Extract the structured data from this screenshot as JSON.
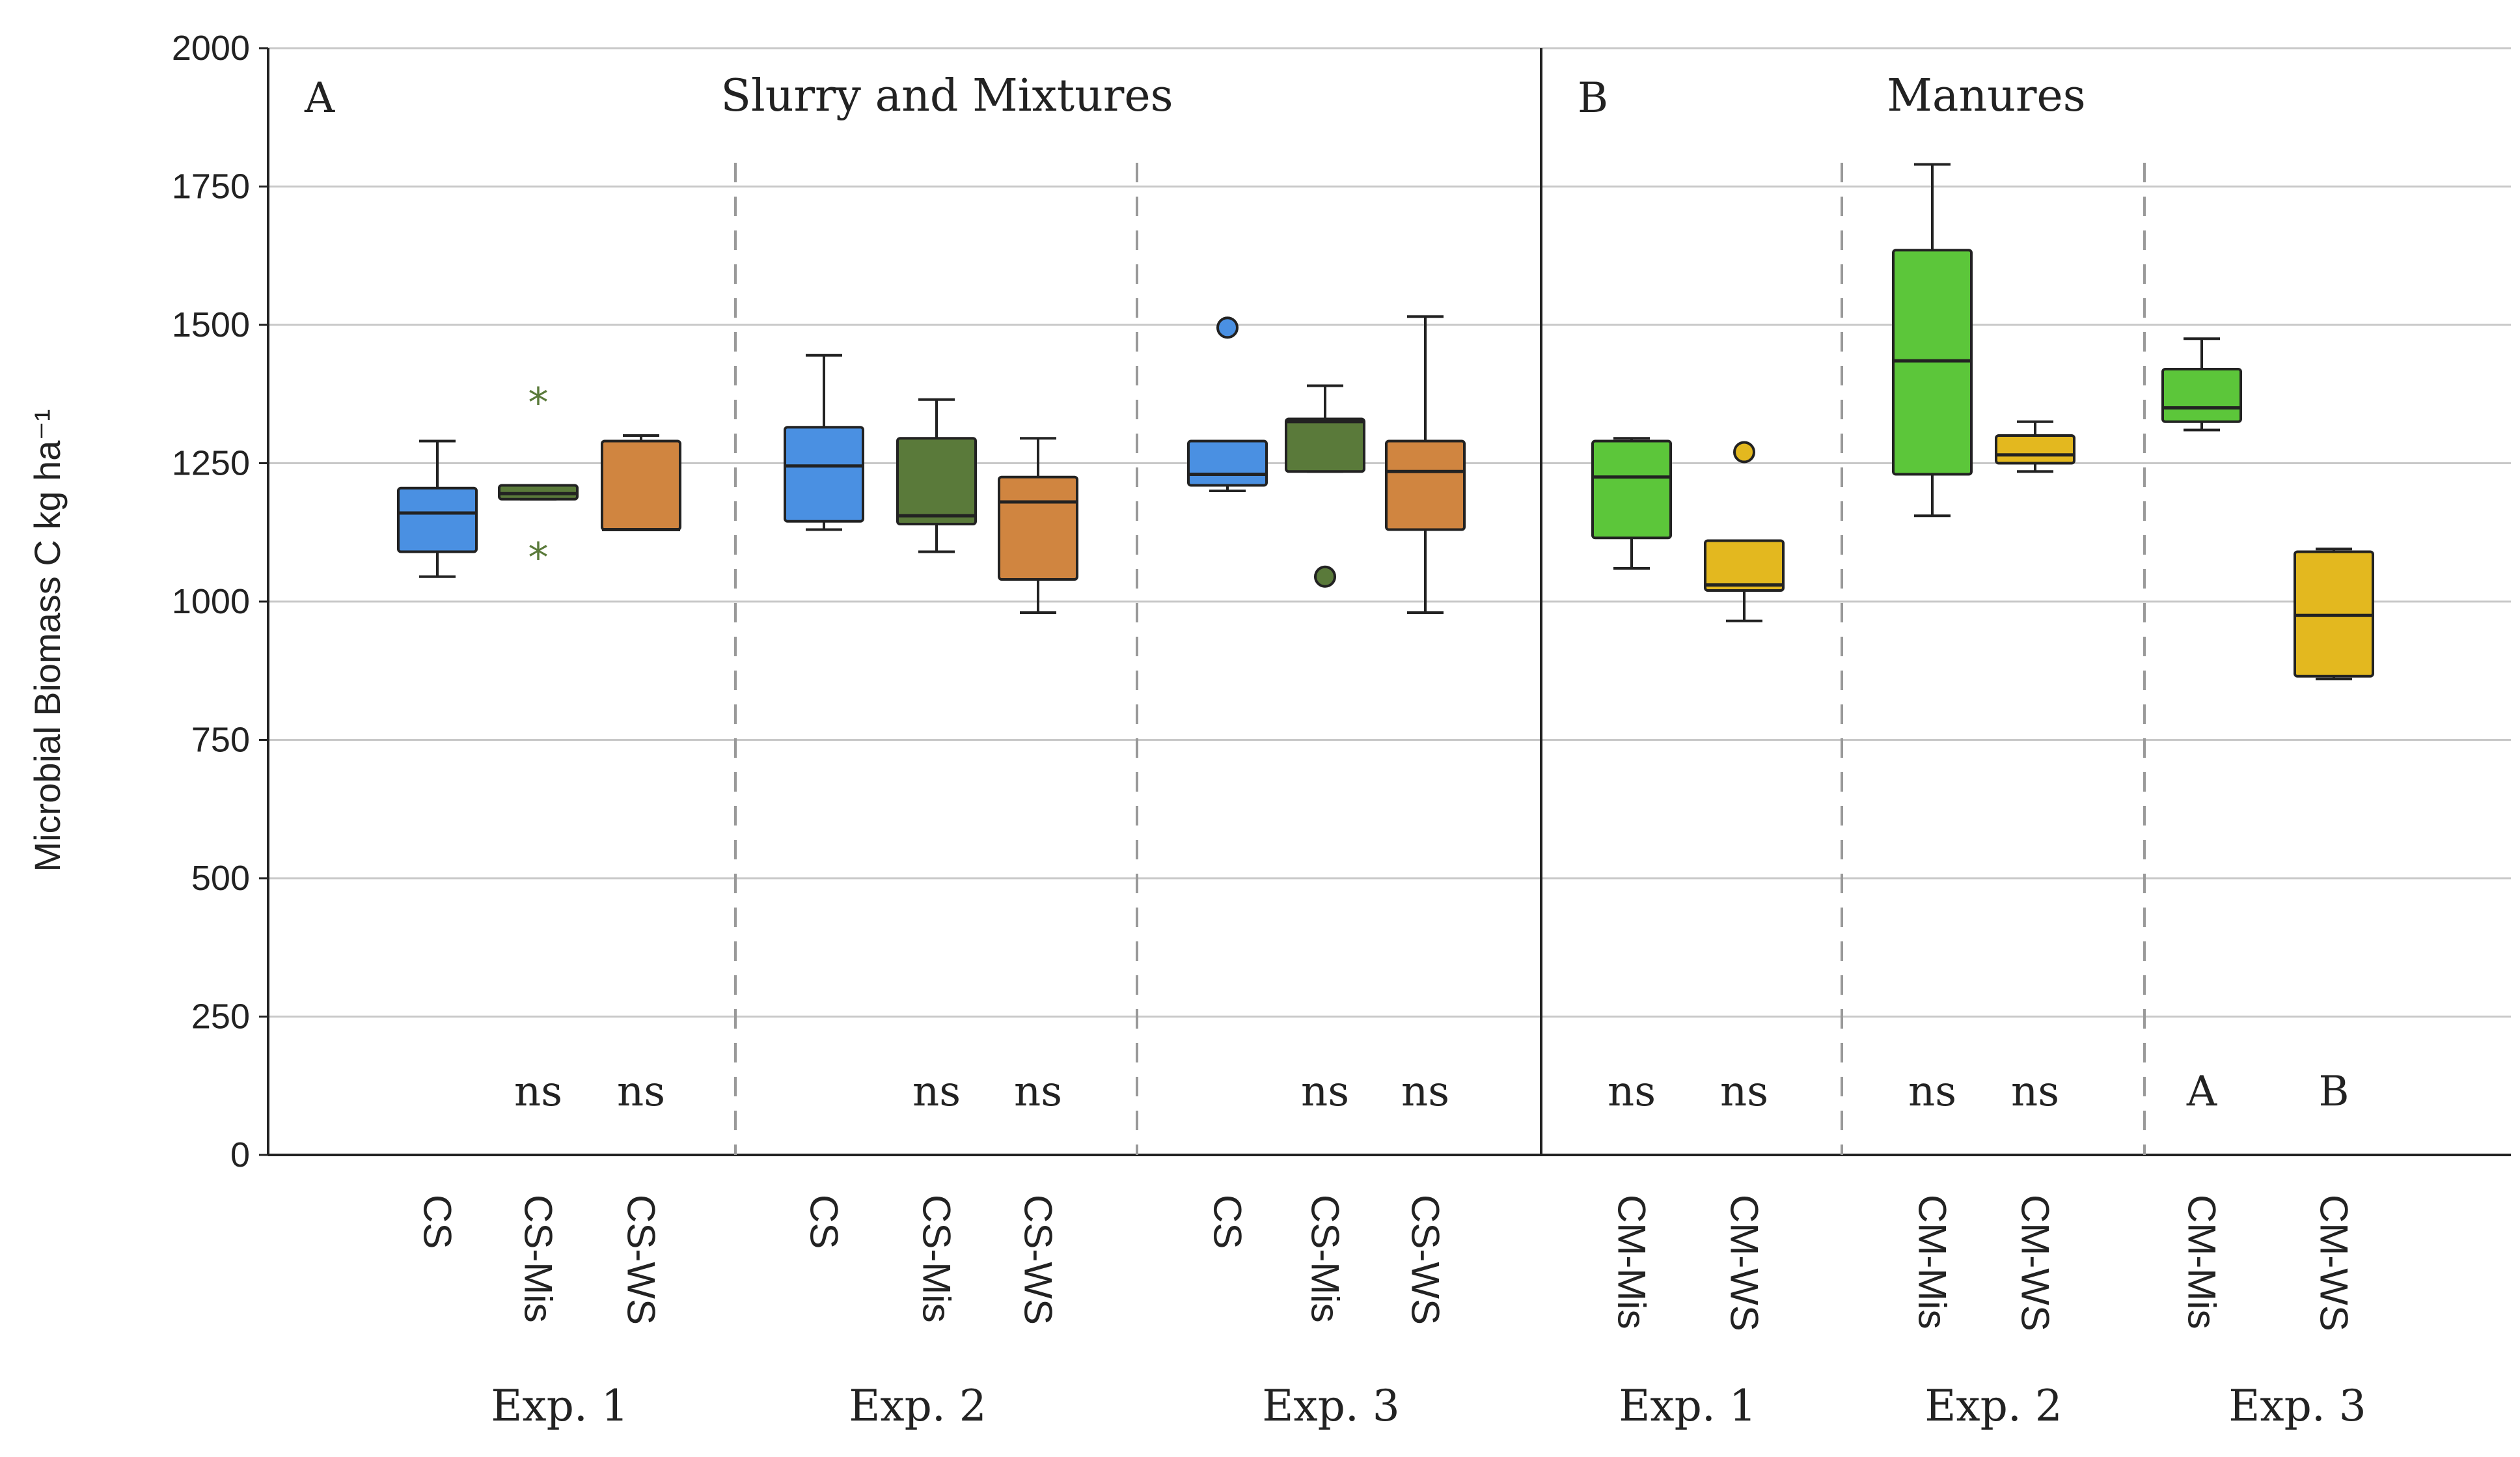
{
  "chart_data": {
    "type": "box",
    "ylabel": "Microbial Biomass C kg ha⁻¹",
    "ylim": [
      0,
      2000
    ],
    "yticks": [
      0,
      250,
      500,
      750,
      1000,
      1250,
      1500,
      1750,
      2000
    ],
    "grid": true,
    "colors": {
      "CS": "#4a90e2",
      "CS-Mis": "#5a7a3a",
      "CS-WS": "#d08540",
      "CM-Mis": "#5cc63a",
      "CM-WS": "#e3b81f"
    },
    "panels": [
      {
        "letter": "A",
        "title": "Slurry and Mixtures",
        "experiments": [
          {
            "label": "Exp. 1",
            "groups": [
              {
                "name": "CS",
                "whisker_low": 1045,
                "q1": 1090,
                "median": 1160,
                "q3": 1205,
                "whisker_high": 1290,
                "outliers": [],
                "annotation": ""
              },
              {
                "name": "CS-Mis",
                "whisker_low": 1185,
                "q1": 1185,
                "median": 1195,
                "q3": 1210,
                "whisker_high": 1210,
                "outliers": [],
                "extremes": [
                  1365,
                  1085
                ],
                "annotation": "ns"
              },
              {
                "name": "CS-WS",
                "whisker_low": 1130,
                "q1": 1130,
                "median": 1130,
                "q3": 1290,
                "whisker_high": 1300,
                "outliers": [],
                "annotation": "ns"
              }
            ]
          },
          {
            "label": "Exp. 2",
            "groups": [
              {
                "name": "CS",
                "whisker_low": 1130,
                "q1": 1145,
                "median": 1245,
                "q3": 1315,
                "whisker_high": 1445,
                "outliers": [],
                "annotation": ""
              },
              {
                "name": "CS-Mis",
                "whisker_low": 1090,
                "q1": 1140,
                "median": 1155,
                "q3": 1295,
                "whisker_high": 1365,
                "outliers": [],
                "annotation": "ns"
              },
              {
                "name": "CS-WS",
                "whisker_low": 980,
                "q1": 1040,
                "median": 1180,
                "q3": 1225,
                "whisker_high": 1295,
                "outliers": [],
                "annotation": "ns"
              }
            ]
          },
          {
            "label": "Exp. 3",
            "groups": [
              {
                "name": "CS",
                "whisker_low": 1200,
                "q1": 1210,
                "median": 1230,
                "q3": 1290,
                "whisker_high": 1290,
                "outliers": [
                  1495
                ],
                "annotation": ""
              },
              {
                "name": "CS-Mis",
                "whisker_low": 1235,
                "q1": 1235,
                "median": 1325,
                "q3": 1330,
                "whisker_high": 1390,
                "outliers": [
                  1045
                ],
                "annotation": "ns"
              },
              {
                "name": "CS-WS",
                "whisker_low": 980,
                "q1": 1130,
                "median": 1235,
                "q3": 1290,
                "whisker_high": 1515,
                "outliers": [],
                "annotation": "ns"
              }
            ]
          }
        ]
      },
      {
        "letter": "B",
        "title": "Manures",
        "experiments": [
          {
            "label": "Exp. 1",
            "groups": [
              {
                "name": "CM-Mis",
                "whisker_low": 1060,
                "q1": 1115,
                "median": 1225,
                "q3": 1290,
                "whisker_high": 1295,
                "outliers": [],
                "annotation": "ns"
              },
              {
                "name": "CM-WS",
                "whisker_low": 965,
                "q1": 1020,
                "median": 1030,
                "q3": 1110,
                "whisker_high": 1110,
                "outliers": [
                  1270
                ],
                "annotation": "ns"
              }
            ]
          },
          {
            "label": "Exp. 2",
            "groups": [
              {
                "name": "CM-Mis",
                "whisker_low": 1155,
                "q1": 1230,
                "median": 1435,
                "q3": 1635,
                "whisker_high": 1790,
                "outliers": [],
                "annotation": "ns"
              },
              {
                "name": "CM-WS",
                "whisker_low": 1235,
                "q1": 1250,
                "median": 1265,
                "q3": 1300,
                "whisker_high": 1325,
                "outliers": [],
                "annotation": "ns"
              }
            ]
          },
          {
            "label": "Exp. 3",
            "groups": [
              {
                "name": "CM-Mis",
                "whisker_low": 1310,
                "q1": 1325,
                "median": 1350,
                "q3": 1420,
                "whisker_high": 1475,
                "outliers": [],
                "annotation": "A"
              },
              {
                "name": "CM-WS",
                "whisker_low": 860,
                "q1": 865,
                "median": 975,
                "q3": 1090,
                "whisker_high": 1095,
                "outliers": [],
                "annotation": "B"
              }
            ]
          }
        ]
      }
    ]
  }
}
